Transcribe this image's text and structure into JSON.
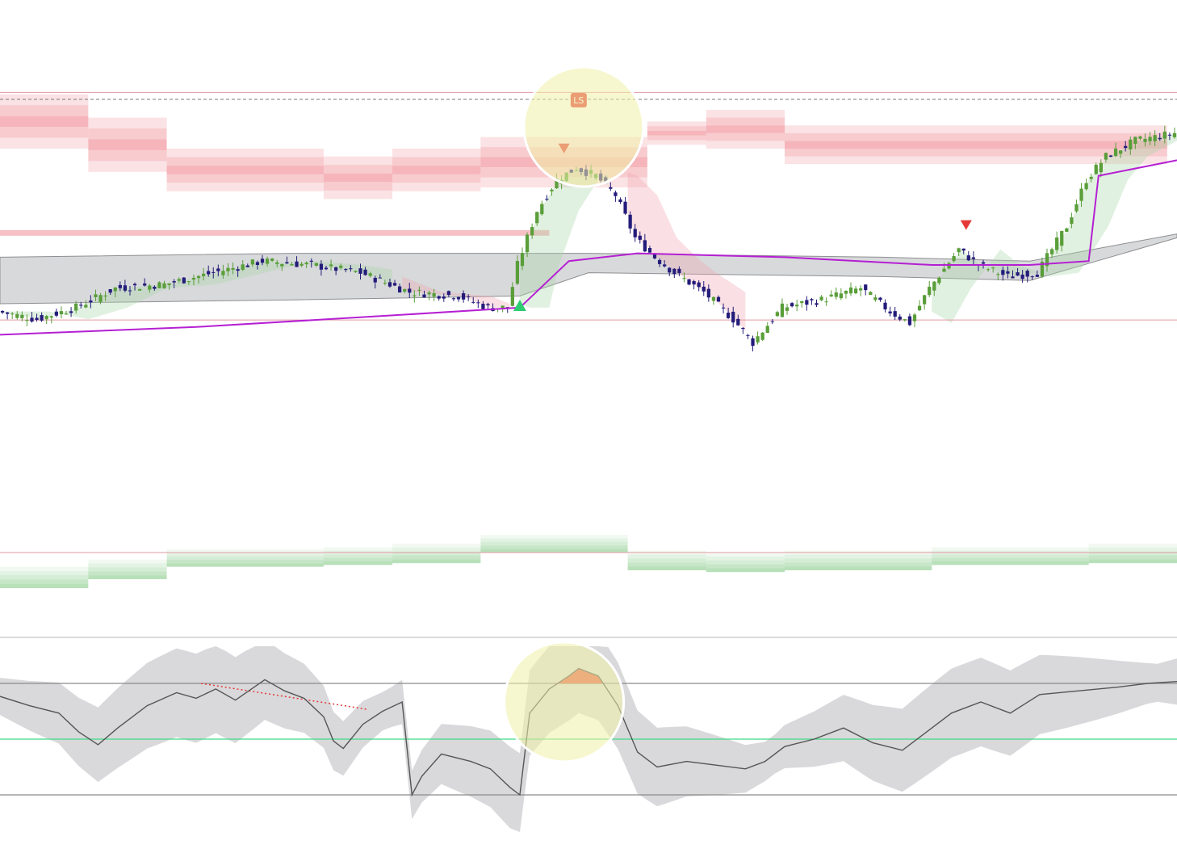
{
  "chart_data": [
    {
      "type": "candlestick",
      "pane": "price",
      "title": "",
      "xlabel": "",
      "ylabel": "",
      "axis_labels_shown": false,
      "grid": false,
      "legend": "none",
      "x": {
        "start": 0,
        "end": 240,
        "unit": "bar"
      },
      "y": {
        "min": 0,
        "max": 100
      },
      "price_path": [
        [
          0,
          28
        ],
        [
          8,
          26
        ],
        [
          16,
          29
        ],
        [
          24,
          34
        ],
        [
          34,
          35
        ],
        [
          44,
          38
        ],
        [
          54,
          41
        ],
        [
          64,
          40
        ],
        [
          74,
          38
        ],
        [
          84,
          33
        ],
        [
          94,
          32
        ],
        [
          100,
          29
        ],
        [
          104,
          29
        ],
        [
          106,
          40
        ],
        [
          110,
          54
        ],
        [
          114,
          62
        ],
        [
          118,
          65
        ],
        [
          122,
          63
        ],
        [
          126,
          58
        ],
        [
          130,
          47
        ],
        [
          134,
          42
        ],
        [
          138,
          38
        ],
        [
          144,
          33
        ],
        [
          150,
          26
        ],
        [
          154,
          20
        ],
        [
          160,
          29
        ],
        [
          168,
          31
        ],
        [
          176,
          34
        ],
        [
          182,
          28
        ],
        [
          186,
          25
        ],
        [
          190,
          34
        ],
        [
          196,
          44
        ],
        [
          200,
          40
        ],
        [
          206,
          37
        ],
        [
          212,
          38
        ],
        [
          218,
          50
        ],
        [
          222,
          62
        ],
        [
          226,
          68
        ],
        [
          232,
          72
        ],
        [
          240,
          74
        ]
      ],
      "overlays": [
        {
          "name": "",
          "kind": "long-term-line",
          "color": "#b51fd3",
          "path": [
            [
              0,
              22
            ],
            [
              40,
              24
            ],
            [
              80,
              27
            ],
            [
              106,
              29
            ],
            [
              116,
              41
            ],
            [
              130,
              43
            ],
            [
              160,
              42
            ],
            [
              190,
              40
            ],
            [
              210,
              40
            ],
            [
              222,
              41
            ],
            [
              224,
              63
            ],
            [
              240,
              67
            ]
          ]
        },
        {
          "name": "",
          "kind": "channel-band",
          "color": "#c8c9cc",
          "upper": [
            [
              0,
              42
            ],
            [
              60,
              43
            ],
            [
              120,
              43
            ],
            [
              180,
              42
            ],
            [
              210,
              41
            ],
            [
              240,
              48
            ]
          ],
          "lower": [
            [
              0,
              30
            ],
            [
              60,
              31
            ],
            [
              106,
              32
            ],
            [
              120,
              38
            ],
            [
              180,
              37
            ],
            [
              210,
              36
            ],
            [
              240,
              47
            ]
          ]
        },
        {
          "name": "",
          "kind": "resistance-zone",
          "color": "#f08c94",
          "levels": [
            [
              0,
              18,
              70,
              84
            ],
            [
              18,
              34,
              64,
              78
            ],
            [
              34,
              66,
              59,
              70
            ],
            [
              66,
              80,
              57,
              68
            ],
            [
              80,
              98,
              59,
              70
            ],
            [
              98,
              132,
              60,
              73
            ],
            [
              132,
              144,
              71,
              77
            ],
            [
              144,
              160,
              70,
              80
            ],
            [
              160,
              238,
              66,
              76
            ]
          ]
        },
        {
          "name": "",
          "kind": "support-zone",
          "color": "#7cc67e",
          "levels": [
            [
              0,
              18,
              -28,
              -40
            ],
            [
              18,
              34,
              -24,
              -35
            ],
            [
              34,
              66,
              -18,
              -28
            ],
            [
              66,
              80,
              -17,
              -27
            ],
            [
              80,
              98,
              -15,
              -26
            ],
            [
              98,
              128,
              -10,
              -20
            ],
            [
              128,
              144,
              -19,
              -30
            ],
            [
              144,
              160,
              -20,
              -31
            ],
            [
              160,
              190,
              -19,
              -30
            ],
            [
              190,
              222,
              -17,
              -27
            ],
            [
              222,
              240,
              -15,
              -26
            ]
          ]
        }
      ],
      "signals": [
        {
          "type": "buy",
          "shape": "triangle-up",
          "color": "#2ecc71",
          "bar": 106
        },
        {
          "type": "sell",
          "shape": "triangle-down",
          "color": "#e53935",
          "bar": 115
        },
        {
          "type": "sell",
          "shape": "triangle-down",
          "color": "#e53935",
          "bar": 197
        }
      ],
      "annotations": [
        {
          "text": "LS",
          "bar": 118,
          "color": "#e53935"
        }
      ],
      "colors": {
        "up": "#5a9e3a",
        "down": "#241c7a"
      }
    },
    {
      "type": "line",
      "pane": "oscillator",
      "title": "",
      "xlabel": "",
      "ylabel": "",
      "axis_labels_shown": false,
      "grid": false,
      "legend": "none",
      "x": {
        "start": 0,
        "end": 240,
        "unit": "bar"
      },
      "y": {
        "min": 0,
        "max": 100
      },
      "levels": [
        {
          "value": 80,
          "color": "#8a8a8a"
        },
        {
          "value": 50,
          "color": "#3ddc84"
        },
        {
          "value": 20,
          "color": "#8a8a8a"
        }
      ],
      "series": [
        {
          "name": "",
          "color": "#555555",
          "points": [
            [
              0,
              73
            ],
            [
              6,
              68
            ],
            [
              12,
              64
            ],
            [
              16,
              54
            ],
            [
              20,
              47
            ],
            [
              24,
              56
            ],
            [
              30,
              68
            ],
            [
              36,
              75
            ],
            [
              40,
              72
            ],
            [
              44,
              77
            ],
            [
              48,
              71
            ],
            [
              54,
              82
            ],
            [
              58,
              76
            ],
            [
              62,
              72
            ],
            [
              66,
              62
            ],
            [
              68,
              49
            ],
            [
              70,
              45
            ],
            [
              74,
              58
            ],
            [
              78,
              65
            ],
            [
              82,
              70
            ],
            [
              84,
              20
            ],
            [
              86,
              30
            ],
            [
              90,
              42
            ],
            [
              96,
              38
            ],
            [
              100,
              34
            ],
            [
              104,
              24
            ],
            [
              106,
              20
            ],
            [
              108,
              64
            ],
            [
              112,
              77
            ],
            [
              116,
              84
            ],
            [
              118,
              88
            ],
            [
              122,
              84
            ],
            [
              126,
              68
            ],
            [
              130,
              43
            ],
            [
              134,
              35
            ],
            [
              140,
              38
            ],
            [
              146,
              36
            ],
            [
              152,
              34
            ],
            [
              156,
              38
            ],
            [
              160,
              46
            ],
            [
              166,
              50
            ],
            [
              172,
              56
            ],
            [
              178,
              48
            ],
            [
              184,
              44
            ],
            [
              188,
              52
            ],
            [
              194,
              64
            ],
            [
              200,
              70
            ],
            [
              206,
              64
            ],
            [
              212,
              74
            ],
            [
              220,
              76
            ],
            [
              228,
              78
            ],
            [
              234,
              80
            ],
            [
              240,
              81
            ]
          ]
        }
      ],
      "band": {
        "name": "",
        "color": "#cfd0d3"
      },
      "divergence": {
        "color": "#e53935",
        "style": "dotted",
        "from": [
          41,
          80
        ],
        "to": [
          75,
          66
        ]
      },
      "overbought_fill": {
        "color": "#e8604a"
      }
    }
  ],
  "highlights": [
    {
      "pane": "price",
      "bar": 119,
      "color": "#f1f1a8"
    },
    {
      "pane": "oscillator",
      "bar": 115,
      "color": "#f1f1a8"
    }
  ]
}
